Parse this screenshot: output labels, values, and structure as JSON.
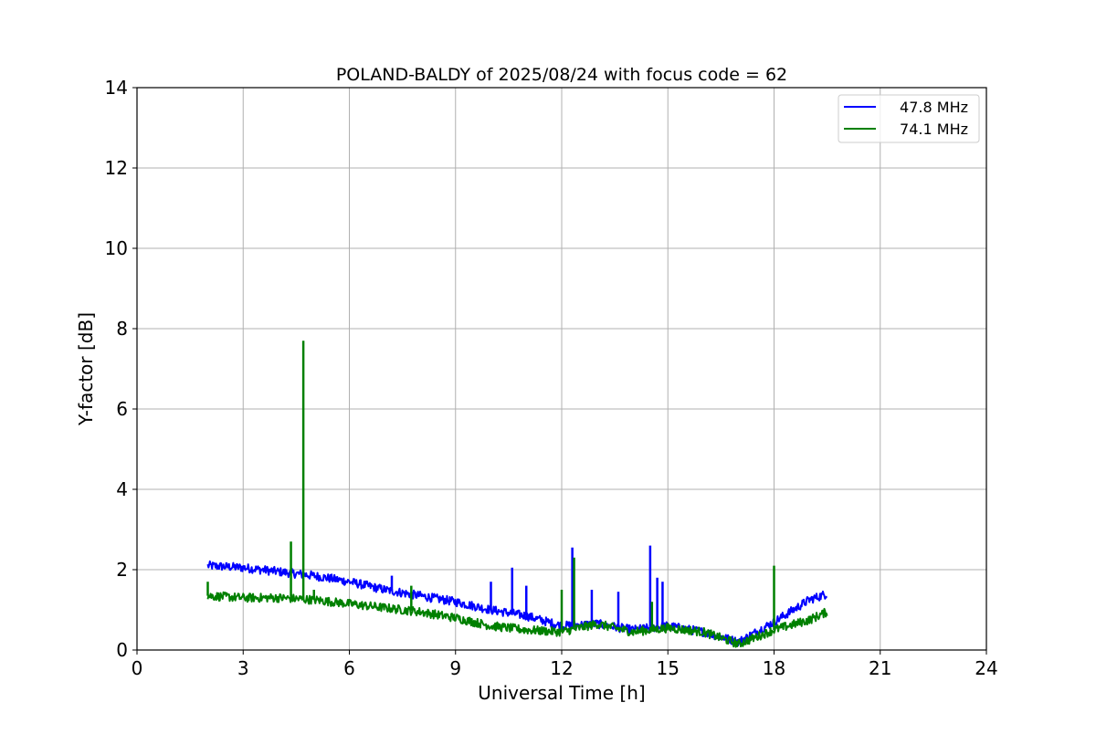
{
  "chart_data": {
    "type": "line",
    "title": "POLAND-BALDY of 2025/08/24 with focus code = 62",
    "xlabel": "Universal Time [h]",
    "ylabel": "Y-factor [dB]",
    "xlim": [
      0,
      24
    ],
    "ylim": [
      0,
      14
    ],
    "xticks": [
      "0",
      "3",
      "6",
      "9",
      "12",
      "15",
      "18",
      "21",
      "24"
    ],
    "yticks": [
      "0",
      "2",
      "4",
      "6",
      "8",
      "10",
      "12",
      "14"
    ],
    "grid": true,
    "legend_position": "top-right",
    "series": [
      {
        "name": "47.8 MHz",
        "color": "#0000ff",
        "x": [
          2,
          3,
          4,
          5,
          6,
          7,
          8,
          9,
          10,
          11,
          12,
          13,
          14,
          15,
          16,
          17,
          18,
          19,
          19.5
        ],
        "y": [
          2.1,
          2.05,
          1.95,
          1.85,
          1.7,
          1.5,
          1.35,
          1.2,
          1.0,
          0.85,
          0.6,
          0.65,
          0.5,
          0.6,
          0.45,
          0.2,
          0.7,
          1.25,
          1.4
        ],
        "spikes": [
          [
            7.2,
            1.85
          ],
          [
            10.0,
            1.7
          ],
          [
            10.6,
            2.05
          ],
          [
            11.0,
            1.6
          ],
          [
            12.3,
            2.55
          ],
          [
            12.85,
            1.5
          ],
          [
            13.6,
            1.45
          ],
          [
            14.5,
            2.6
          ],
          [
            14.7,
            1.8
          ],
          [
            14.85,
            1.7
          ]
        ]
      },
      {
        "name": "74.1 MHz",
        "color": "#008000",
        "x": [
          2,
          3,
          4,
          5,
          6,
          7,
          8,
          9,
          10,
          11,
          12,
          13,
          14,
          15,
          16,
          17,
          18,
          19,
          19.5
        ],
        "y": [
          1.35,
          1.3,
          1.3,
          1.25,
          1.15,
          1.05,
          0.95,
          0.8,
          0.6,
          0.5,
          0.45,
          0.65,
          0.45,
          0.55,
          0.45,
          0.15,
          0.5,
          0.75,
          0.95
        ],
        "spikes": [
          [
            2.0,
            1.7
          ],
          [
            4.35,
            2.7
          ],
          [
            4.7,
            7.7
          ],
          [
            5.0,
            1.5
          ],
          [
            7.75,
            1.6
          ],
          [
            12.0,
            1.5
          ],
          [
            12.35,
            2.3
          ],
          [
            14.55,
            1.2
          ],
          [
            18.0,
            2.1
          ]
        ]
      }
    ]
  }
}
